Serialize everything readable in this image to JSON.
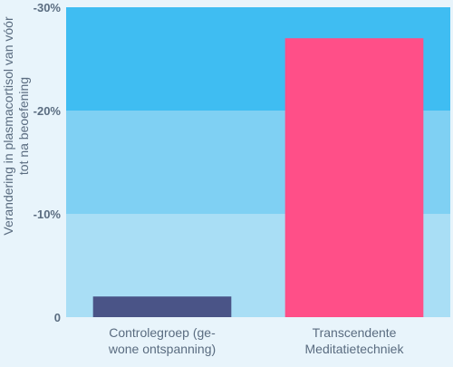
{
  "chart_data": {
    "type": "bar",
    "title": "",
    "xlabel": "",
    "ylabel_lines": [
      "Verandering in plasmacortisol van vóór",
      "tot na beoefening"
    ],
    "categories": [
      [
        "Controlegroep (ge-",
        "wone ontspanning)"
      ],
      [
        "Transcendente",
        "Meditatietechniek"
      ]
    ],
    "values": [
      -2,
      -27
    ],
    "ylim": [
      0,
      -30
    ],
    "yticks": [
      0,
      -10,
      -20,
      -30
    ],
    "ytick_labels": [
      "0",
      "-10%",
      "-20%",
      "-30%"
    ],
    "bar_colors": [
      "#4a5487",
      "#ff4f88"
    ],
    "band_colors": [
      "#a9def5",
      "#7fd0f3",
      "#3fbdf2"
    ],
    "grid": false
  }
}
